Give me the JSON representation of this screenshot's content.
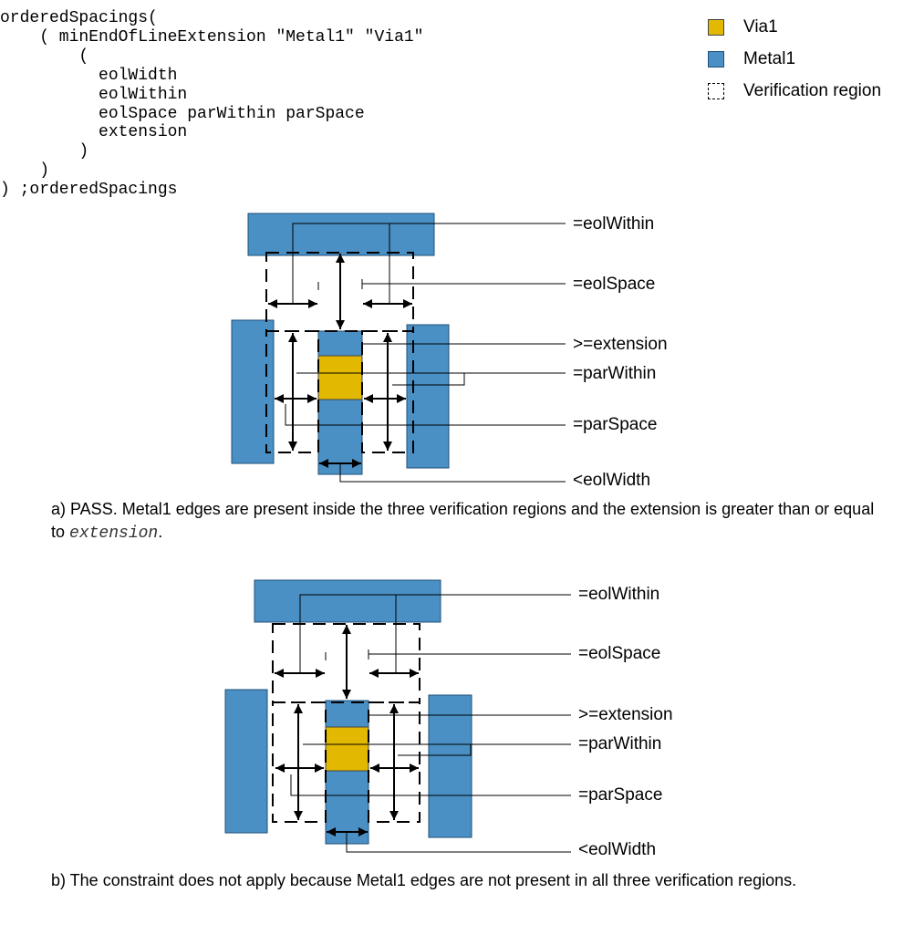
{
  "code": {
    "lines": [
      "orderedSpacings(",
      "    ( minEndOfLineExtension \"Metal1\" \"Via1\"",
      "        (",
      "          eolWidth",
      "          eolWithin",
      "          eolSpace parWithin parSpace",
      "          extension",
      "        )",
      "    )",
      ") ;orderedSpacings"
    ]
  },
  "legend": {
    "items": [
      {
        "label": "Via1",
        "color": "#e2b800"
      },
      {
        "label": "Metal1",
        "color": "#4a90c4"
      },
      {
        "label": "Verification region"
      }
    ]
  },
  "colors": {
    "metal": "#4a90c4",
    "via": "#e2b800"
  },
  "diagram_a": {
    "labels": [
      "=eolWithin",
      "=eolSpace",
      ">=extension",
      "=parWithin",
      "=parSpace",
      "<eolWidth"
    ],
    "caption_prefix": "a) PASS. Metal1 edges are present inside the three verification regions and the extension is greater than or equal to ",
    "caption_code": "extension",
    "caption_suffix": "."
  },
  "diagram_b": {
    "labels": [
      "=eolWithin",
      "=eolSpace",
      ">=extension",
      "=parWithin",
      "=parSpace",
      "<eolWidth"
    ],
    "caption": "b) The constraint does not apply because Metal1 edges are not present in all three verification regions."
  }
}
